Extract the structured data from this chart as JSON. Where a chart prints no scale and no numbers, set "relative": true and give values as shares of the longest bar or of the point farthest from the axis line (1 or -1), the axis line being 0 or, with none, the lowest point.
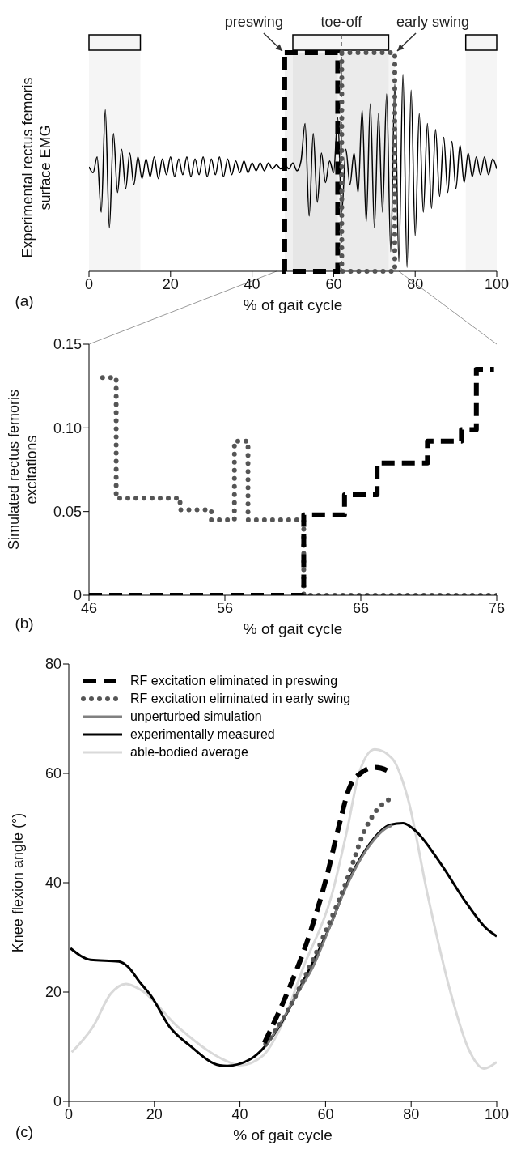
{
  "chart_data": [
    {
      "type": "line",
      "title": "(a)",
      "ylabel": "Experimental rectus femoris surface EMG",
      "xlabel": "% of gait cycle",
      "relative": true,
      "marker": "none",
      "xlim": [
        0,
        100
      ],
      "xticks": [
        0,
        20,
        40,
        60,
        80,
        100
      ],
      "x": [
        0,
        1,
        2,
        3,
        4,
        5,
        6,
        7,
        8,
        9,
        10,
        11,
        12,
        13,
        14,
        15,
        16,
        17,
        18,
        19,
        20,
        21,
        22,
        23,
        24,
        25,
        26,
        27,
        28,
        29,
        30,
        31,
        32,
        33,
        34,
        35,
        36,
        37,
        38,
        39,
        40,
        41,
        42,
        43,
        44,
        45,
        46,
        47,
        48,
        49,
        50,
        51,
        52,
        53,
        54,
        55,
        56,
        57,
        58,
        59,
        60,
        61,
        62,
        63,
        64,
        65,
        66,
        67,
        68,
        69,
        70,
        71,
        72,
        73,
        74,
        75,
        76,
        77,
        78,
        79,
        80,
        81,
        82,
        83,
        84,
        85,
        86,
        87,
        88,
        89,
        90,
        91,
        92,
        93,
        94,
        95,
        96,
        97,
        98,
        99,
        100
      ],
      "series": [
        {
          "color": "#000000",
          "line_style": "solid",
          "values": [
            0.53,
            0.5,
            0.58,
            0.3,
            0.82,
            0.22,
            0.7,
            0.4,
            0.62,
            0.42,
            0.6,
            0.44,
            0.58,
            0.47,
            0.57,
            0.48,
            0.58,
            0.47,
            0.57,
            0.49,
            0.58,
            0.48,
            0.57,
            0.49,
            0.58,
            0.48,
            0.57,
            0.49,
            0.58,
            0.48,
            0.57,
            0.49,
            0.58,
            0.48,
            0.57,
            0.49,
            0.56,
            0.5,
            0.56,
            0.5,
            0.55,
            0.51,
            0.55,
            0.51,
            0.55,
            0.52,
            0.54,
            0.52,
            0.54,
            0.52,
            0.55,
            0.51,
            0.56,
            0.75,
            0.28,
            0.7,
            0.35,
            0.6,
            0.45,
            0.56,
            0.5,
            0.78,
            0.3,
            0.62,
            0.44,
            0.6,
            0.4,
            0.82,
            0.25,
            0.85,
            0.22,
            0.8,
            0.3,
            0.9,
            0.1,
            0.95,
            0.05,
            1.0,
            0.02,
            0.92,
            0.18,
            0.8,
            0.3,
            0.75,
            0.32,
            0.72,
            0.38,
            0.68,
            0.4,
            0.66,
            0.42,
            0.64,
            0.45,
            0.6,
            0.48,
            0.58,
            0.49,
            0.58,
            0.49,
            0.57,
            0.52
          ]
        }
      ],
      "bands": [
        {
          "axis": "x",
          "from": 0,
          "to": 12.6,
          "color": "#000000"
        },
        {
          "axis": "x",
          "from": 50,
          "to": 73.5,
          "color": "#000000"
        },
        {
          "axis": "x",
          "from": 92.4,
          "to": 100,
          "color": "#000000"
        },
        {
          "axis": "x",
          "from": 48,
          "to": 61,
          "label": "preswing",
          "color": "#000000"
        },
        {
          "axis": "x",
          "from": 62,
          "to": 75,
          "label": "early swing",
          "color": "#555555"
        }
      ],
      "ref_lines": [
        {
          "axis": "x",
          "value": 61.9,
          "label": "toe-off",
          "line_style": "dashed",
          "color": "#555555"
        }
      ]
    },
    {
      "type": "step",
      "title": "(b)",
      "ylabel": "Simulated rectus femoris excitations",
      "xlabel": "% of gait cycle",
      "marker": "none",
      "xlim": [
        46,
        76
      ],
      "xticks": [
        46,
        56,
        66,
        76
      ],
      "ylim": [
        0,
        0.15
      ],
      "yticks": [
        0,
        0.05,
        {
          "value": 0.1,
          "label": "0.10"
        },
        0.15
      ],
      "series": [
        {
          "color": "#000000",
          "line_style": "dashed",
          "x": [
            46,
            61.8,
            64.8,
            67.2,
            70.9,
            73.4,
            74.5,
            75.8
          ],
          "values": [
            0,
            0.048,
            0.06,
            0.079,
            0.092,
            0.099,
            0.135,
            0.135
          ]
        },
        {
          "color": "#555555",
          "line_style": "dotted",
          "x": [
            47,
            48,
            52.7,
            55,
            56.7,
            57.7,
            61.8,
            76
          ],
          "values": [
            0.13,
            0.058,
            0.051,
            0.045,
            0.092,
            0.045,
            0,
            0
          ]
        }
      ]
    },
    {
      "type": "line",
      "title": "(c)",
      "ylabel": "Knee flexion angle (°)",
      "xlabel": "% of gait cycle",
      "marker": "none",
      "legend": "top left",
      "xlim": [
        0,
        100
      ],
      "xticks": [
        0,
        20,
        40,
        60,
        80,
        100
      ],
      "ylim": [
        0,
        80
      ],
      "yticks": [
        0,
        20,
        40,
        60,
        80
      ],
      "series": [
        {
          "name": "RF excitation eliminated in preswing",
          "color": "#000000",
          "line_style": "dashed",
          "x": [
            45.7,
            50.7,
            56.7,
            60.3,
            63.2,
            65.5,
            68.5,
            71.5,
            75.1,
            75.5
          ],
          "values": [
            10.7,
            19.2,
            31.6,
            41.2,
            50.6,
            57.2,
            60.2,
            61.1,
            60.2,
            59.8
          ]
        },
        {
          "name": "RF excitation eliminated in early swing",
          "color": "#555555",
          "line_style": "dotted",
          "x": [
            46,
            50,
            55,
            60,
            65,
            69.1,
            71.5,
            74.2,
            75.6
          ],
          "values": [
            10.5,
            15,
            22.5,
            31,
            40.5,
            49.5,
            52.8,
            54.9,
            55.5
          ]
        },
        {
          "name": "unperturbed simulation",
          "color": "#808080",
          "line_style": "solid",
          "x": [
            46,
            50,
            54,
            57,
            60,
            65,
            70,
            75,
            75.5
          ],
          "values": [
            10,
            15,
            20.5,
            24.5,
            30,
            39.5,
            46.5,
            50.3,
            50.4
          ]
        },
        {
          "name": "experimentally measured",
          "color": "#000000",
          "line_style": "solid",
          "x": [
            0.4,
            5.1,
            11.7,
            14,
            16.4,
            19.4,
            23.5,
            28.3,
            35.3,
            37,
            42.4,
            46,
            50.1,
            54.8,
            60.8,
            65.5,
            70.3,
            75.1,
            78.1,
            81,
            86.9,
            92.9,
            97.6,
            100
          ],
          "values": [
            28,
            25.9,
            25.6,
            24.5,
            22,
            19.1,
            13.7,
            10.2,
            6.6,
            6.5,
            7.7,
            10.2,
            14.9,
            22,
            31.6,
            40.6,
            47.1,
            50.6,
            50.9,
            49.5,
            43.5,
            36.3,
            31.6,
            30.2
          ]
        },
        {
          "name": "able-bodied average",
          "color": "#d9d9d9",
          "line_style": "solid",
          "x": [
            0.7,
            5.7,
            9.8,
            13.4,
            17,
            25.4,
            36,
            40,
            45.4,
            49.6,
            54.8,
            61.4,
            65,
            67.9,
            71.5,
            75.6,
            79.2,
            83.9,
            89.3,
            93.4,
            97,
            100
          ],
          "values": [
            9,
            13.7,
            19.7,
            21.5,
            20.3,
            13.7,
            7.7,
            6.6,
            8.4,
            13.7,
            24.5,
            37.6,
            49.5,
            60.2,
            64.4,
            62.7,
            55.5,
            37.6,
            19.7,
            9.6,
            6,
            7.2
          ]
        }
      ]
    }
  ]
}
